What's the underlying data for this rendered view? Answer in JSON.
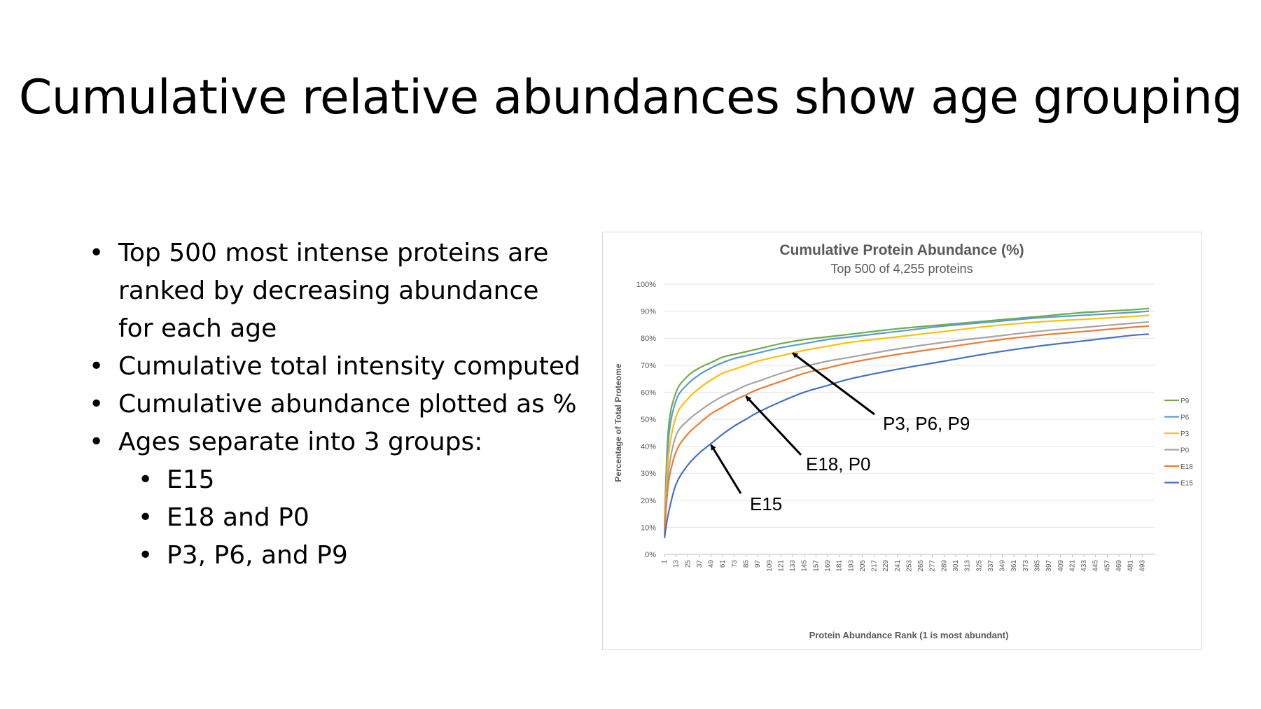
{
  "slide": {
    "title": "Cumulative relative abundances show age grouping",
    "bullets": [
      {
        "level": 1,
        "lines": [
          "Top 500 most intense proteins are",
          "ranked by decreasing abundance",
          "for each age"
        ]
      },
      {
        "level": 1,
        "lines": [
          "Cumulative total intensity computed"
        ]
      },
      {
        "level": 1,
        "lines": [
          "Cumulative abundance plotted as %"
        ]
      },
      {
        "level": 1,
        "lines": [
          "Ages separate into 3 groups:"
        ]
      },
      {
        "level": 2,
        "lines": [
          "E15"
        ]
      },
      {
        "level": 2,
        "lines": [
          "E18 and P0"
        ]
      },
      {
        "level": 2,
        "lines": [
          "P3, P6, and P9"
        ]
      }
    ]
  },
  "chart_data": {
    "type": "line",
    "title": "Cumulative Protein Abundance (%)",
    "subtitle": "Top 500 of 4,255 proteins",
    "xlabel": "Protein Abundance Rank (1 is most abundant)",
    "ylabel": "Percentage of Total Proteome",
    "xlim": [
      1,
      500
    ],
    "ylim": [
      0,
      100
    ],
    "yticks": [
      0,
      10,
      20,
      30,
      40,
      50,
      60,
      70,
      80,
      90,
      100
    ],
    "ytick_labels": [
      "0%",
      "10%",
      "20%",
      "30%",
      "40%",
      "50%",
      "60%",
      "70%",
      "80%",
      "90%",
      "100%"
    ],
    "xtick_labels": [
      "1",
      "13",
      "25",
      "37",
      "49",
      "61",
      "73",
      "85",
      "97",
      "109",
      "121",
      "133",
      "145",
      "157",
      "169",
      "181",
      "193",
      "205",
      "217",
      "229",
      "241",
      "253",
      "265",
      "277",
      "289",
      "301",
      "313",
      "325",
      "337",
      "349",
      "361",
      "373",
      "385",
      "397",
      "409",
      "421",
      "433",
      "445",
      "457",
      "469",
      "481",
      "493"
    ],
    "grid": "horizontal",
    "legend_position": "right",
    "x": [
      1,
      5,
      13,
      25,
      37,
      49,
      61,
      73,
      85,
      97,
      121,
      145,
      169,
      193,
      241,
      289,
      337,
      385,
      433,
      481,
      500
    ],
    "series": [
      {
        "name": "P9",
        "color": "#70ad47",
        "values": [
          11,
          46,
          60,
          66,
          69,
          71,
          73,
          74,
          75,
          76,
          78,
          79.5,
          80.5,
          81.5,
          83.5,
          85,
          86.5,
          88,
          89.5,
          90.5,
          91
        ]
      },
      {
        "name": "P6",
        "color": "#5b9bd5",
        "values": [
          10,
          42,
          57,
          63,
          66.5,
          69,
          71,
          72.5,
          73.5,
          74.5,
          76.5,
          78,
          79.5,
          80.5,
          82.5,
          84.5,
          86,
          87.5,
          88.5,
          89.5,
          90
        ]
      },
      {
        "name": "P3",
        "color": "#ffc000",
        "values": [
          9,
          36,
          51,
          57.5,
          61.5,
          64.5,
          67,
          68.5,
          70,
          71.5,
          73.5,
          75.5,
          77,
          78.5,
          80.5,
          82.5,
          84.5,
          86,
          87,
          88,
          88.5
        ]
      },
      {
        "name": "P0",
        "color": "#a5a5a5",
        "values": [
          8,
          30,
          44,
          49.5,
          53,
          56,
          58.5,
          60.5,
          62.5,
          64,
          67,
          69.5,
          71.5,
          73,
          76,
          78.5,
          80.5,
          82.5,
          84,
          85.5,
          86
        ]
      },
      {
        "name": "E18",
        "color": "#ed7d31",
        "values": [
          7,
          26,
          38,
          44.5,
          48.5,
          52,
          54.5,
          57,
          59,
          61,
          64,
          67,
          69,
          71,
          74,
          76.5,
          79,
          81,
          82.5,
          84,
          84.5
        ]
      },
      {
        "name": "E15",
        "color": "#4472c4",
        "values": [
          6,
          15,
          26,
          33,
          37.5,
          41,
          44.5,
          47.5,
          50,
          52.5,
          56.5,
          60,
          62.5,
          65,
          68.5,
          71.5,
          74.5,
          77,
          79,
          81,
          81.5
        ]
      }
    ],
    "annotations": [
      {
        "text": "P3, P6, P9",
        "arrow_to": [
          133,
          74.5
        ]
      },
      {
        "text": "E18, P0",
        "arrow_to": [
          85,
          58.5
        ]
      },
      {
        "text": "E15",
        "arrow_to": [
          49,
          40.5
        ]
      }
    ]
  }
}
